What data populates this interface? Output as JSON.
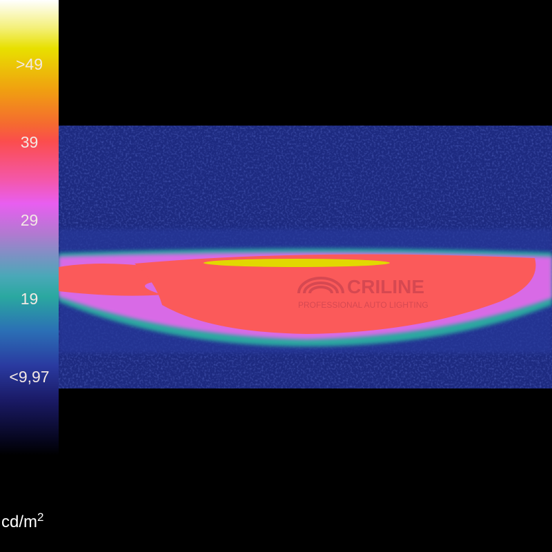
{
  "colorbar": {
    "ticks": [
      ">49",
      "39",
      "29",
      "19",
      "<9,97"
    ],
    "unit_base": "cd/m",
    "unit_exp": "2",
    "colors": [
      "#ffffff",
      "#e8e000",
      "#f0a010",
      "#fb4d4d",
      "#e85ef0",
      "#2aa8a0",
      "#2a3aa0",
      "#000000"
    ]
  },
  "watermark": {
    "brand": "CRILINE",
    "tagline": "PROFESSIONAL AUTO LIGHTING"
  }
}
